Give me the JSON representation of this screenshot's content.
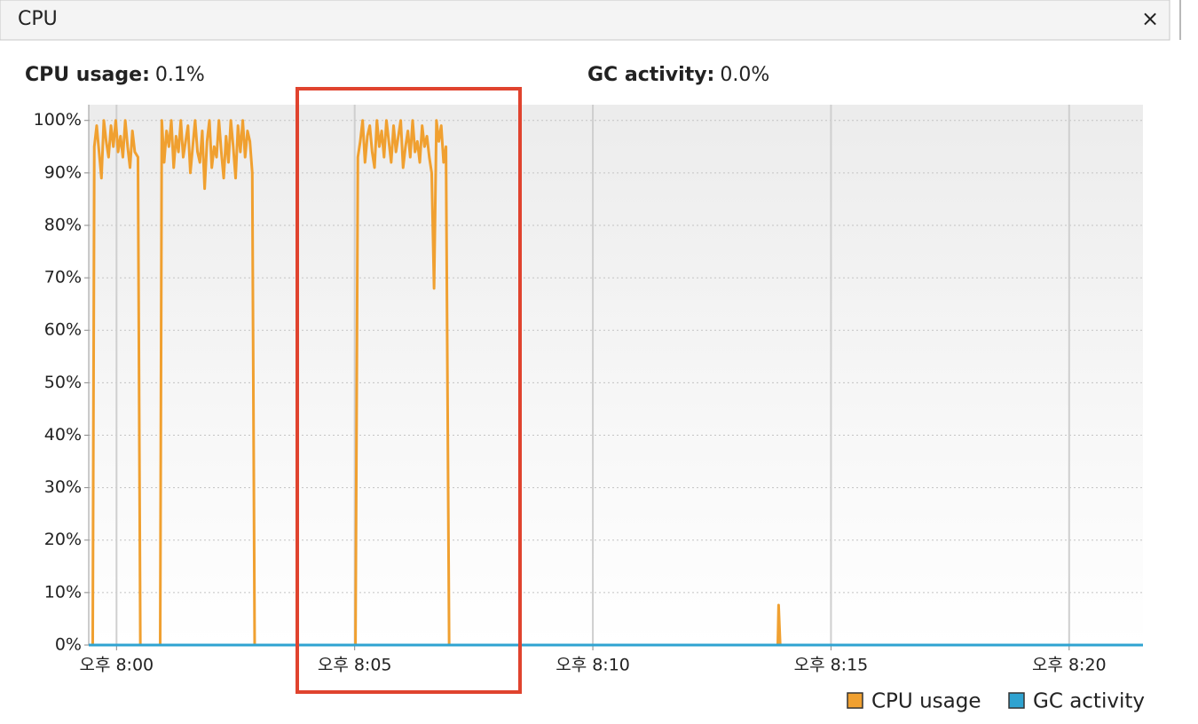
{
  "panel": {
    "title": "CPU",
    "close": "×",
    "stats": [
      {
        "label": "CPU usage:",
        "value": "0.1%"
      },
      {
        "label": "GC activity:",
        "value": "0.0%"
      }
    ]
  },
  "chart_data": {
    "type": "line",
    "xlim": [
      "19:59:25",
      "20:21:33"
    ],
    "ylim": [
      0,
      103
    ],
    "xticks": [
      {
        "value": "20:00:00",
        "label": "오후 8:00"
      },
      {
        "value": "20:05:00",
        "label": "오후 8:05"
      },
      {
        "value": "20:10:00",
        "label": "오후 8:10"
      },
      {
        "value": "20:15:00",
        "label": "오후 8:15"
      },
      {
        "value": "20:20:00",
        "label": "오후 8:20"
      }
    ],
    "yticks": [
      {
        "value": 0,
        "label": "0%"
      },
      {
        "value": 10,
        "label": "10%"
      },
      {
        "value": 20,
        "label": "20%"
      },
      {
        "value": 30,
        "label": "30%"
      },
      {
        "value": 40,
        "label": "40%"
      },
      {
        "value": 50,
        "label": "50%"
      },
      {
        "value": 60,
        "label": "60%"
      },
      {
        "value": 70,
        "label": "70%"
      },
      {
        "value": 80,
        "label": "80%"
      },
      {
        "value": 90,
        "label": "90%"
      },
      {
        "value": 100,
        "label": "100%"
      }
    ],
    "grid": true,
    "series": [
      {
        "name": "CPU usage",
        "color": "#f0a030",
        "x": [
          "19:59:30",
          "19:59:32",
          "19:59:35",
          "19:59:38",
          "19:59:41",
          "19:59:44",
          "19:59:47",
          "19:59:50",
          "19:59:53",
          "19:59:56",
          "19:59:59",
          "20:00:02",
          "20:00:05",
          "20:00:08",
          "20:00:11",
          "20:00:14",
          "20:00:17",
          "20:00:20",
          "20:00:23",
          "20:00:27",
          "20:00:30",
          "20:00:55",
          "20:00:57",
          "20:01:00",
          "20:01:03",
          "20:01:06",
          "20:01:09",
          "20:01:12",
          "20:01:15",
          "20:01:18",
          "20:01:21",
          "20:01:24",
          "20:01:27",
          "20:01:30",
          "20:01:33",
          "20:01:36",
          "20:01:39",
          "20:01:42",
          "20:01:45",
          "20:01:48",
          "20:01:51",
          "20:01:54",
          "20:01:57",
          "20:02:00",
          "20:02:03",
          "20:02:06",
          "20:02:09",
          "20:02:12",
          "20:02:15",
          "20:02:18",
          "20:02:21",
          "20:02:24",
          "20:02:27",
          "20:02:30",
          "20:02:33",
          "20:02:36",
          "20:02:39",
          "20:02:42",
          "20:02:45",
          "20:02:48",
          "20:02:51",
          "20:02:54",
          "20:05:01",
          "20:05:04",
          "20:05:07",
          "20:05:10",
          "20:05:13",
          "20:05:16",
          "20:05:19",
          "20:05:22",
          "20:05:25",
          "20:05:28",
          "20:05:31",
          "20:05:34",
          "20:05:37",
          "20:05:40",
          "20:05:43",
          "20:05:46",
          "20:05:49",
          "20:05:52",
          "20:05:55",
          "20:05:58",
          "20:06:01",
          "20:06:04",
          "20:06:07",
          "20:06:10",
          "20:06:13",
          "20:06:16",
          "20:06:19",
          "20:06:22",
          "20:06:25",
          "20:06:28",
          "20:06:31",
          "20:06:34",
          "20:06:37",
          "20:06:40",
          "20:06:43",
          "20:06:46",
          "20:06:49",
          "20:06:52",
          "20:06:55",
          "20:06:59",
          "20:13:53",
          "20:13:54",
          "20:13:56",
          "20:21:33"
        ],
        "values": [
          0,
          95,
          99,
          94,
          89,
          100,
          96,
          93,
          99,
          95,
          100,
          94,
          97,
          93,
          100,
          95,
          91,
          98,
          94,
          93,
          0,
          0,
          100,
          92,
          98,
          95,
          100,
          91,
          97,
          94,
          100,
          93,
          96,
          99,
          90,
          95,
          100,
          94,
          92,
          98,
          87,
          96,
          100,
          91,
          95,
          93,
          100,
          94,
          89,
          97,
          92,
          100,
          95,
          89,
          99,
          94,
          100,
          93,
          98,
          96,
          90,
          0,
          0,
          93,
          96,
          100,
          92,
          97,
          99,
          94,
          91,
          100,
          95,
          98,
          93,
          100,
          96,
          92,
          99,
          94,
          97,
          100,
          91,
          95,
          98,
          93,
          100,
          94,
          96,
          92,
          99,
          95,
          97,
          93,
          90,
          68,
          100,
          96,
          99,
          92,
          95,
          0,
          0,
          7.6,
          0,
          0
        ]
      },
      {
        "name": "GC activity",
        "color": "#2fa3d1",
        "x": [
          "19:59:25",
          "20:21:33"
        ],
        "values": [
          0,
          0
        ]
      }
    ]
  }
}
